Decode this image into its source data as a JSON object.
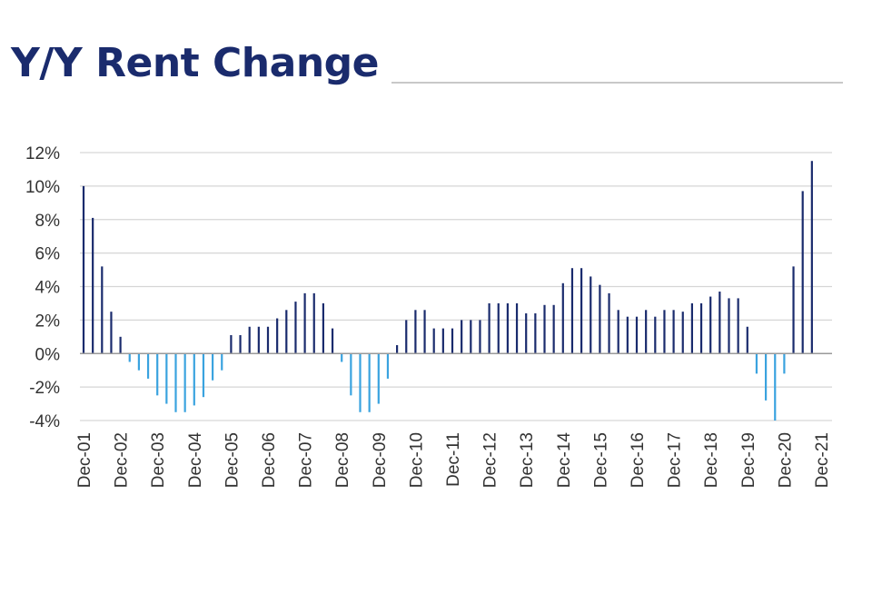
{
  "colors": {
    "title": "#1a2b6d",
    "positive_bar": "#1a2b6d",
    "negative_bar": "#3aa3df",
    "grid": "#d6d6d6",
    "axis": "#9a9a9a",
    "title_rule": "#c8c8c8"
  },
  "chart_data": {
    "type": "bar",
    "title": "Y/Y Rent Change",
    "xlabel": "",
    "ylabel": "",
    "ylim": [
      -4,
      12
    ],
    "y_ticks": [
      12,
      10,
      8,
      6,
      4,
      2,
      0,
      -2,
      -4
    ],
    "y_tick_labels": [
      "12%",
      "10%",
      "8%",
      "6%",
      "4%",
      "2%",
      "0%",
      "-2%",
      "-4%"
    ],
    "x_tick_labels": [
      "Dec-01",
      "Dec-02",
      "Dec-03",
      "Dec-04",
      "Dec-05",
      "Dec-06",
      "Dec-07",
      "Dec-08",
      "Dec-09",
      "Dec-10",
      "Dec-11",
      "Dec-12",
      "Dec-13",
      "Dec-14",
      "Dec-15",
      "Dec-16",
      "Dec-17",
      "Dec-18",
      "Dec-19",
      "Dec-20",
      "Dec-21"
    ],
    "grid": true,
    "legend": "none",
    "frequency": "quarterly",
    "values": [
      10.0,
      8.1,
      5.2,
      2.5,
      1.0,
      -0.5,
      -1.0,
      -1.5,
      -2.5,
      -3.0,
      -3.5,
      -3.5,
      -3.1,
      -2.6,
      -1.6,
      -1.0,
      1.1,
      1.1,
      1.6,
      1.6,
      1.6,
      2.1,
      2.6,
      3.1,
      3.6,
      3.6,
      3.0,
      1.5,
      -0.5,
      -2.5,
      -3.5,
      -3.5,
      -3.0,
      -1.5,
      0.5,
      2.0,
      2.6,
      2.6,
      1.5,
      1.5,
      1.5,
      2.0,
      2.0,
      2.0,
      3.0,
      3.0,
      3.0,
      3.0,
      2.4,
      2.4,
      2.9,
      2.9,
      4.2,
      5.1,
      5.1,
      4.6,
      4.1,
      3.6,
      2.6,
      2.2,
      2.2,
      2.6,
      2.2,
      2.6,
      2.6,
      2.5,
      3.0,
      3.0,
      3.4,
      3.7,
      3.3,
      3.3,
      1.6,
      -1.2,
      -2.8,
      -4.0,
      -1.2,
      5.2,
      9.7,
      11.5
    ]
  }
}
